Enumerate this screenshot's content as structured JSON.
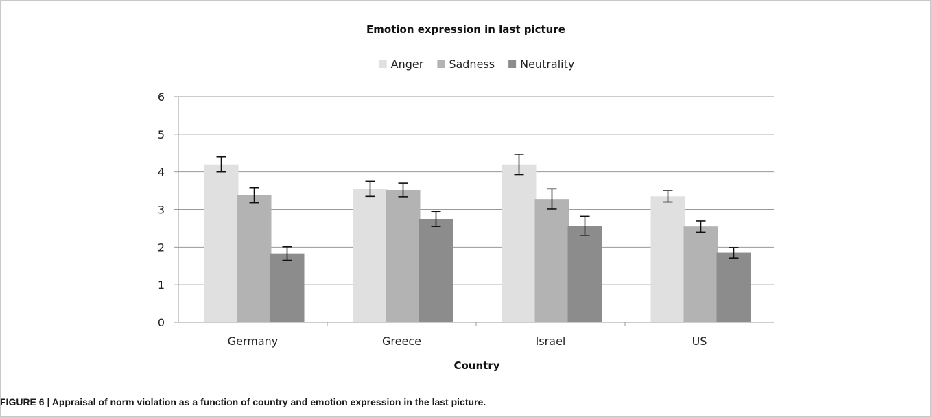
{
  "caption": "FIGURE 6 | Appraisal of norm violation as a function of country and emotion expression in the last picture.",
  "colors": {
    "Anger": "#e0e0e0",
    "Sadness": "#b3b3b3",
    "Neutrality": "#8c8c8c",
    "grid": "#9a9a9a",
    "error_bar": "#111111"
  },
  "chart_data": {
    "type": "bar",
    "title": "Emotion expression in last picture",
    "xlabel": "Country",
    "ylabel": "",
    "ylim": [
      0,
      6
    ],
    "yticks": [
      0,
      1,
      2,
      3,
      4,
      5,
      6
    ],
    "grid": true,
    "legend_position": "top-center",
    "categories": [
      "Germany",
      "Greece",
      "Israel",
      "US"
    ],
    "series": [
      {
        "name": "Anger",
        "values": [
          4.2,
          3.55,
          4.2,
          3.35
        ],
        "error": [
          0.2,
          0.2,
          0.27,
          0.15
        ]
      },
      {
        "name": "Sadness",
        "values": [
          3.38,
          3.52,
          3.28,
          2.55
        ],
        "error": [
          0.2,
          0.18,
          0.27,
          0.15
        ]
      },
      {
        "name": "Neutrality",
        "values": [
          1.83,
          2.75,
          2.57,
          1.85
        ],
        "error": [
          0.18,
          0.2,
          0.25,
          0.14
        ]
      }
    ]
  }
}
